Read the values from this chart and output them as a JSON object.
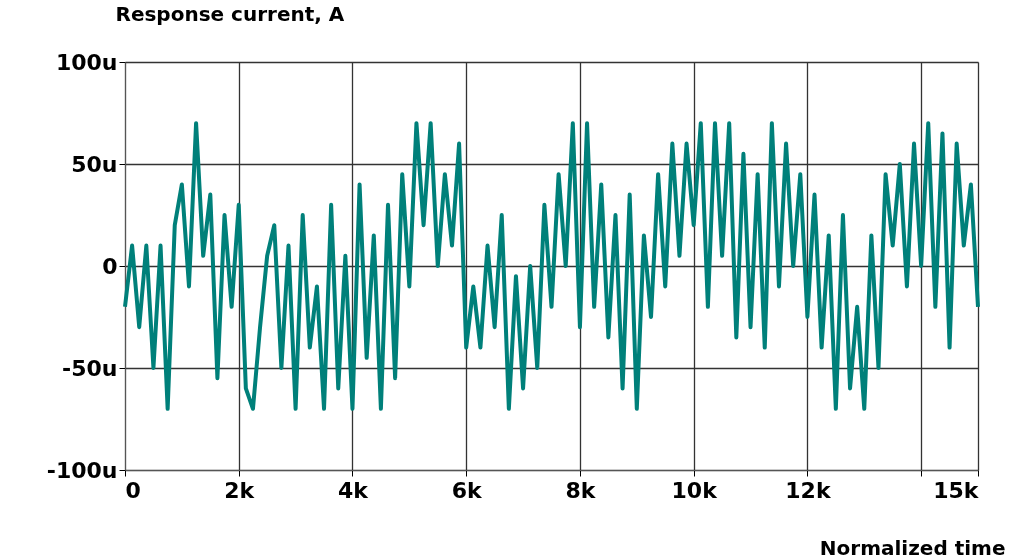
{
  "chart_data": {
    "type": "line",
    "ylabel": "Response current, A",
    "xlabel": "Normalized time",
    "x": [
      0,
      125,
      250,
      375,
      500,
      625,
      750,
      875,
      1000,
      1125,
      1250,
      1375,
      1500,
      1625,
      1750,
      1875,
      2000,
      2125,
      2250,
      2375,
      2500,
      2625,
      2750,
      2875,
      3000,
      3125,
      3250,
      3375,
      3500,
      3625,
      3750,
      3875,
      4000,
      4125,
      4250,
      4375,
      4500,
      4625,
      4750,
      4875,
      5000,
      5125,
      5250,
      5375,
      5500,
      5625,
      5750,
      5875,
      6000,
      6125,
      6250,
      6375,
      6500,
      6625,
      6750,
      6875,
      7000,
      7125,
      7250,
      7375,
      7500,
      7625,
      7750,
      7875,
      8000,
      8125,
      8250,
      8375,
      8500,
      8625,
      8750,
      8875,
      9000,
      9125,
      9250,
      9375,
      9500,
      9625,
      9750,
      9875,
      10000,
      10125,
      10250,
      10375,
      10500,
      10625,
      10750,
      10875,
      11000,
      11125,
      11250,
      11375,
      11500,
      11625,
      11750,
      11875,
      12000,
      12125,
      12250,
      12375,
      12500,
      12625,
      12750,
      12875,
      13000,
      13125,
      13250,
      13375,
      13500,
      13625,
      13750,
      13875,
      14000,
      14125,
      14250,
      14375,
      14500,
      14625,
      14750,
      14875,
      15000
    ],
    "series": [
      {
        "color": "#00807a",
        "values": [
          -20,
          10,
          -30,
          10,
          -50,
          10,
          -70,
          20,
          40,
          -10,
          70,
          5,
          35,
          -55,
          25,
          -20,
          30,
          -60,
          -70,
          -30,
          5,
          20,
          -50,
          10,
          -70,
          25,
          -40,
          -10,
          -70,
          30,
          -60,
          5,
          -70,
          40,
          -45,
          15,
          -70,
          30,
          -55,
          45,
          -10,
          70,
          20,
          70,
          0,
          45,
          10,
          60,
          -40,
          -10,
          -40,
          10,
          -30,
          25,
          -70,
          -5,
          -60,
          0,
          -50,
          30,
          -20,
          45,
          0,
          70,
          -30,
          70,
          -20,
          40,
          -35,
          25,
          -60,
          35,
          -70,
          15,
          -25,
          45,
          -10,
          60,
          5,
          60,
          20,
          70,
          -20,
          70,
          5,
          70,
          -35,
          55,
          -30,
          45,
          -40,
          70,
          -10,
          60,
          0,
          45,
          -25,
          35,
          -40,
          15,
          -70,
          25,
          -60,
          -20,
          -70,
          15,
          -50,
          45,
          10,
          50,
          -10,
          60,
          0,
          70,
          -20,
          65,
          -40,
          60,
          10,
          40,
          -20
        ]
      }
    ],
    "xlim": [
      0,
      15000
    ],
    "xticks": [
      {
        "value": 0,
        "label": "0"
      },
      {
        "value": 2000,
        "label": "2k"
      },
      {
        "value": 4000,
        "label": "4k"
      },
      {
        "value": 6000,
        "label": "6k"
      },
      {
        "value": 8000,
        "label": "8k"
      },
      {
        "value": 10000,
        "label": "10k"
      },
      {
        "value": 12000,
        "label": "12k"
      },
      {
        "value": 14000,
        "label": null
      },
      {
        "value": 15000,
        "label": "15k"
      }
    ],
    "ylim": [
      -100,
      100
    ],
    "yticks": [
      {
        "value": -100,
        "label": "-100u"
      },
      {
        "value": -50,
        "label": "-50u"
      },
      {
        "value": 0,
        "label": "0"
      },
      {
        "value": 50,
        "label": "50u"
      },
      {
        "value": 100,
        "label": "100u"
      }
    ],
    "grid": true,
    "marker": "none",
    "line_style": "solid"
  }
}
